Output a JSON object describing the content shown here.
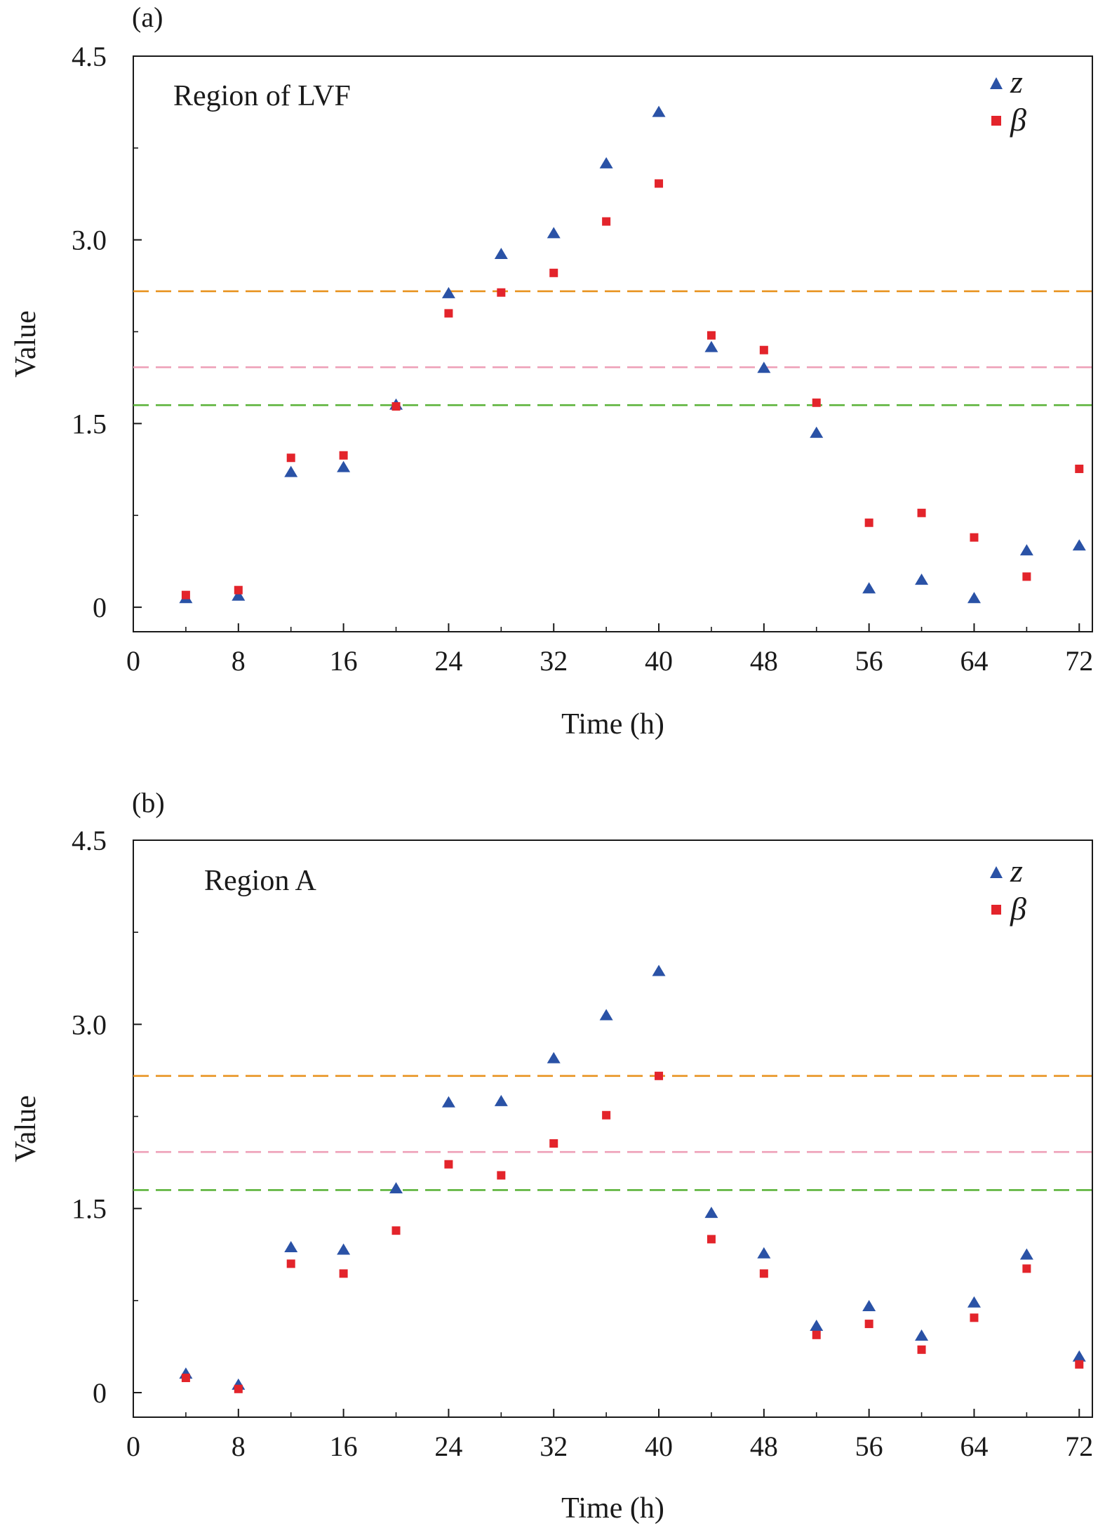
{
  "colors": {
    "z": "#2a52a6",
    "beta": "#e3242b",
    "threshold_high": "#e8921e",
    "threshold_mid": "#eea0b8",
    "threshold_low": "#5cb33a"
  },
  "chart_data": [
    {
      "type": "scatter",
      "panel_tag": "(a)",
      "annotation": "Region of LVF",
      "xlabel": "Time (h)",
      "ylabel": "Value",
      "xlim": [
        0,
        73
      ],
      "ylim": [
        -0.2,
        4.5
      ],
      "xticks": [
        "0",
        "8",
        "16",
        "24",
        "32",
        "40",
        "48",
        "56",
        "64",
        "72"
      ],
      "yticks": [
        "0",
        "1.5",
        "3.0",
        "4.5"
      ],
      "legend_position": "top-right",
      "thresholds": [
        2.58,
        1.96,
        1.65
      ],
      "x": [
        4,
        8,
        12,
        16,
        20,
        24,
        28,
        32,
        36,
        40,
        44,
        48,
        52,
        56,
        60,
        64,
        68,
        72
      ],
      "series": [
        {
          "name": "z",
          "marker": "triangle",
          "values": [
            0.07,
            0.09,
            1.1,
            1.14,
            1.65,
            2.56,
            2.88,
            3.05,
            3.62,
            4.04,
            2.12,
            1.95,
            1.42,
            0.15,
            0.22,
            0.07,
            0.46,
            0.5
          ]
        },
        {
          "name": "β",
          "marker": "square",
          "values": [
            0.1,
            0.14,
            1.22,
            1.24,
            1.64,
            2.4,
            2.57,
            2.73,
            3.15,
            3.46,
            2.22,
            2.1,
            1.67,
            0.69,
            0.77,
            0.57,
            0.25,
            1.13
          ]
        }
      ]
    },
    {
      "type": "scatter",
      "panel_tag": "(b)",
      "annotation": "Region A",
      "xlabel": "Time (h)",
      "ylabel": "Value",
      "xlim": [
        0,
        73
      ],
      "ylim": [
        -0.2,
        4.5
      ],
      "xticks": [
        "0",
        "8",
        "16",
        "24",
        "32",
        "40",
        "48",
        "56",
        "64",
        "72"
      ],
      "yticks": [
        "0",
        "1.5",
        "3.0",
        "4.5"
      ],
      "legend_position": "top-right",
      "thresholds": [
        2.58,
        1.96,
        1.65
      ],
      "x": [
        4,
        8,
        12,
        16,
        20,
        24,
        28,
        32,
        36,
        40,
        44,
        48,
        52,
        56,
        60,
        64,
        68,
        72
      ],
      "series": [
        {
          "name": "z",
          "marker": "triangle",
          "values": [
            0.15,
            0.06,
            1.18,
            1.16,
            1.66,
            2.36,
            2.37,
            2.72,
            3.07,
            3.43,
            1.46,
            1.13,
            0.54,
            0.7,
            0.46,
            0.73,
            1.12,
            0.29
          ]
        },
        {
          "name": "β",
          "marker": "square",
          "values": [
            0.12,
            0.03,
            1.05,
            0.97,
            1.32,
            1.86,
            1.77,
            2.03,
            2.26,
            2.58,
            1.25,
            0.97,
            0.47,
            0.56,
            0.35,
            0.61,
            1.01,
            0.23
          ]
        }
      ]
    }
  ]
}
